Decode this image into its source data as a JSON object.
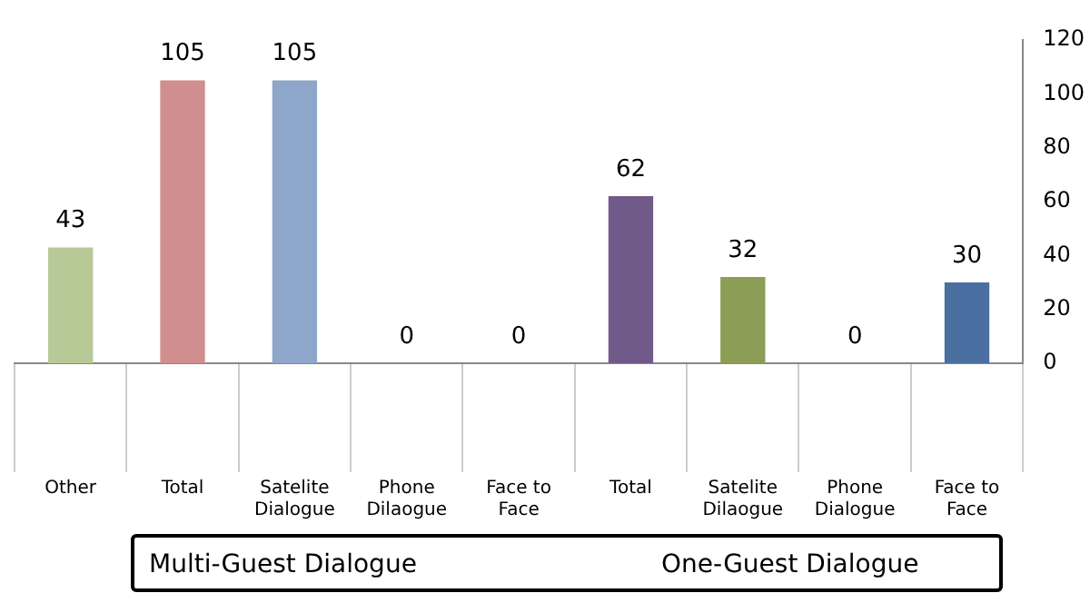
{
  "chart_data": {
    "type": "bar",
    "categories": [
      "Other",
      "Total",
      "Satelite Dialogue",
      "Phone Dilaogue",
      "Face to Face",
      "Total",
      "Satelite Dilaogue",
      "Phone Dialogue",
      "Face to Face"
    ],
    "values": [
      43,
      105,
      105,
      0,
      0,
      62,
      32,
      0,
      30
    ],
    "colors": [
      "#b7c996",
      "#d08e8e",
      "#8fa6cb",
      "#8fa6cb",
      "#8fa6cb",
      "#705a8a",
      "#8c9e55",
      "#4a6fa0",
      "#4a6fa0"
    ],
    "ylim": [
      0,
      120
    ],
    "yticks": [
      0,
      20,
      40,
      60,
      80,
      100,
      120
    ],
    "grid": false,
    "legend": false,
    "data_labels": true,
    "annotations": [
      "Multi-Guest Dialogue",
      "One-Guest Dialogue"
    ]
  }
}
